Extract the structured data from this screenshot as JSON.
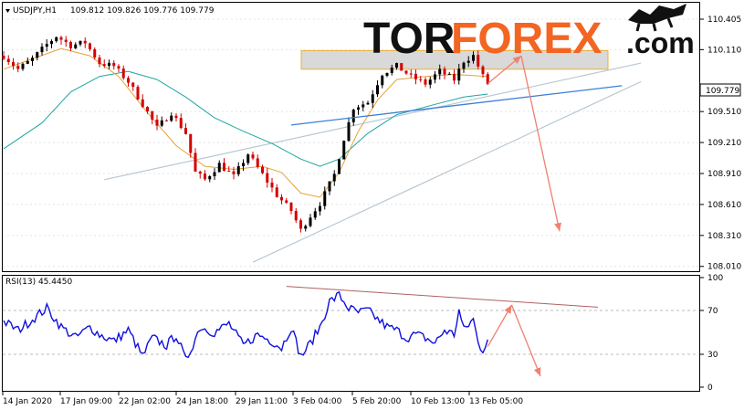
{
  "header": {
    "symbol": "USDJPY,H1",
    "ohlc": "109.812 109.826 109.776 109.779"
  },
  "logo": {
    "part1": "TOR",
    "part2": "FOREX",
    "part3": ".com"
  },
  "colors": {
    "bull_candle": "#000000",
    "bear_candle": "#d40000",
    "ma_fast": "#e3a33a",
    "ma_slow": "#1ea5a0",
    "channel": "#b9c8d3",
    "trendline": "#3d7fd6",
    "resistance_zone": "#d9d9d9",
    "forecast_arrow": "#f08070",
    "rsi_line": "#1010dd",
    "rsi_trendline": "#b06060"
  },
  "chart_data": [
    {
      "type": "candlestick",
      "title": "USDJPY,H1",
      "price_last": "109.779",
      "yticks": [
        "110.405",
        "110.110",
        "109.510",
        "109.210",
        "108.910",
        "108.610",
        "108.310",
        "108.010"
      ],
      "ytick_values": [
        110.405,
        110.11,
        109.51,
        109.21,
        108.91,
        108.61,
        108.31,
        108.01
      ],
      "ylim": [
        107.99,
        110.52
      ],
      "xticks": [
        "14 Jan 2020",
        "17 Jan 09:00",
        "22 Jan 02:00",
        "24 Jan 18:00",
        "29 Jan 11:00",
        "3 Feb 04:00",
        "5 Feb 20:00",
        "10 Feb 13:00",
        "13 Feb 05:00"
      ],
      "close_path": [
        [
          0,
          110.05
        ],
        [
          3,
          109.92
        ],
        [
          6,
          110.02
        ],
        [
          9,
          110.16
        ],
        [
          11,
          110.24
        ],
        [
          14,
          110.15
        ],
        [
          17,
          110.18
        ],
        [
          20,
          109.98
        ],
        [
          23,
          109.95
        ],
        [
          26,
          109.8
        ],
        [
          29,
          109.58
        ],
        [
          32,
          109.35
        ],
        [
          35,
          109.5
        ],
        [
          38,
          109.3
        ],
        [
          40,
          108.92
        ],
        [
          42,
          108.85
        ],
        [
          45,
          109.0
        ],
        [
          48,
          108.88
        ],
        [
          51,
          109.1
        ],
        [
          54,
          108.9
        ],
        [
          57,
          108.7
        ],
        [
          60,
          108.55
        ],
        [
          62,
          108.36
        ],
        [
          64,
          108.5
        ],
        [
          66,
          108.62
        ],
        [
          69,
          108.9
        ],
        [
          71,
          109.25
        ],
        [
          73,
          109.55
        ],
        [
          76,
          109.6
        ],
        [
          79,
          109.88
        ],
        [
          82,
          109.95
        ],
        [
          85,
          109.85
        ],
        [
          88,
          109.78
        ],
        [
          91,
          109.9
        ],
        [
          94,
          109.82
        ],
        [
          96,
          110.0
        ],
        [
          98,
          110.05
        ],
        [
          100,
          109.85
        ],
        [
          101,
          109.78
        ]
      ],
      "ma_fast": [
        [
          0,
          109.92
        ],
        [
          6,
          110.02
        ],
        [
          12,
          110.12
        ],
        [
          18,
          110.05
        ],
        [
          24,
          109.85
        ],
        [
          30,
          109.5
        ],
        [
          36,
          109.18
        ],
        [
          42,
          108.98
        ],
        [
          48,
          108.95
        ],
        [
          54,
          108.98
        ],
        [
          58,
          108.92
        ],
        [
          62,
          108.72
        ],
        [
          66,
          108.68
        ],
        [
          70,
          108.92
        ],
        [
          74,
          109.32
        ],
        [
          78,
          109.62
        ],
        [
          82,
          109.82
        ],
        [
          88,
          109.85
        ],
        [
          94,
          109.87
        ],
        [
          101,
          109.85
        ]
      ],
      "ma_slow": [
        [
          0,
          109.15
        ],
        [
          8,
          109.4
        ],
        [
          14,
          109.7
        ],
        [
          20,
          109.85
        ],
        [
          26,
          109.9
        ],
        [
          32,
          109.82
        ],
        [
          38,
          109.65
        ],
        [
          44,
          109.45
        ],
        [
          50,
          109.32
        ],
        [
          56,
          109.2
        ],
        [
          62,
          109.05
        ],
        [
          66,
          108.98
        ],
        [
          70,
          109.05
        ],
        [
          76,
          109.3
        ],
        [
          82,
          109.48
        ],
        [
          90,
          109.58
        ],
        [
          96,
          109.65
        ],
        [
          101,
          109.68
        ]
      ],
      "channel_upper": [
        [
          21,
          108.85
        ],
        [
          133,
          109.98
        ]
      ],
      "channel_lower": [
        [
          52,
          108.05
        ],
        [
          133,
          109.8
        ]
      ],
      "trendline": [
        [
          60,
          109.38
        ],
        [
          129,
          109.76
        ]
      ],
      "resistance_zone": [
        109.92,
        110.1
      ],
      "forecast": [
        [
          101,
          109.78
        ],
        [
          108,
          110.05
        ],
        [
          116,
          108.35
        ]
      ]
    },
    {
      "type": "line",
      "title": "RSI(13) 45.4450",
      "yticks": [
        "100",
        "70",
        "30",
        "0"
      ],
      "ytick_values": [
        100,
        70,
        30,
        0
      ],
      "levels": [
        70,
        30
      ],
      "ylim": [
        0,
        100
      ],
      "rsi_path": [
        [
          0,
          60
        ],
        [
          3,
          52
        ],
        [
          6,
          62
        ],
        [
          9,
          72
        ],
        [
          12,
          55
        ],
        [
          15,
          45
        ],
        [
          18,
          55
        ],
        [
          20,
          48
        ],
        [
          23,
          42
        ],
        [
          26,
          52
        ],
        [
          29,
          28
        ],
        [
          31,
          45
        ],
        [
          34,
          38
        ],
        [
          36,
          48
        ],
        [
          38,
          24
        ],
        [
          41,
          55
        ],
        [
          44,
          50
        ],
        [
          47,
          58
        ],
        [
          50,
          38
        ],
        [
          53,
          48
        ],
        [
          56,
          42
        ],
        [
          58,
          36
        ],
        [
          60,
          55
        ],
        [
          62,
          28
        ],
        [
          64,
          40
        ],
        [
          66,
          55
        ],
        [
          68,
          78
        ],
        [
          70,
          84
        ],
        [
          72,
          72
        ],
        [
          74,
          68
        ],
        [
          76,
          70
        ],
        [
          78,
          62
        ],
        [
          80,
          55
        ],
        [
          82,
          52
        ],
        [
          84,
          45
        ],
        [
          86,
          48
        ],
        [
          88,
          45
        ],
        [
          90,
          40
        ],
        [
          92,
          52
        ],
        [
          94,
          48
        ],
        [
          95,
          70
        ],
        [
          96,
          52
        ],
        [
          98,
          62
        ],
        [
          99,
          40
        ],
        [
          100,
          34
        ],
        [
          101,
          45
        ]
      ],
      "trendline": [
        [
          59,
          92
        ],
        [
          124,
          73
        ]
      ],
      "forecast": [
        [
          101,
          37
        ],
        [
          106,
          75
        ],
        [
          112,
          10
        ]
      ]
    }
  ]
}
